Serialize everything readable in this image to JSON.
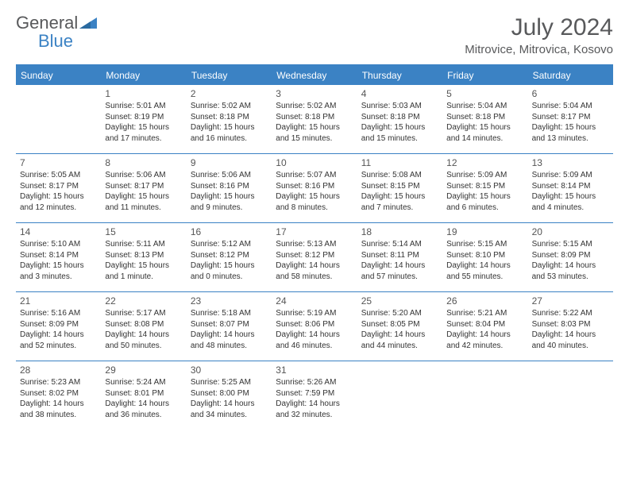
{
  "logo": {
    "part1": "General",
    "part2": "Blue"
  },
  "title": "July 2024",
  "location": "Mitrovice, Mitrovica, Kosovo",
  "colors": {
    "accent": "#3b82c4",
    "text": "#58595b"
  },
  "weekdays": [
    "Sunday",
    "Monday",
    "Tuesday",
    "Wednesday",
    "Thursday",
    "Friday",
    "Saturday"
  ],
  "weeks": [
    [
      null,
      {
        "n": "1",
        "sr": "Sunrise: 5:01 AM",
        "ss": "Sunset: 8:19 PM",
        "d1": "Daylight: 15 hours",
        "d2": "and 17 minutes."
      },
      {
        "n": "2",
        "sr": "Sunrise: 5:02 AM",
        "ss": "Sunset: 8:18 PM",
        "d1": "Daylight: 15 hours",
        "d2": "and 16 minutes."
      },
      {
        "n": "3",
        "sr": "Sunrise: 5:02 AM",
        "ss": "Sunset: 8:18 PM",
        "d1": "Daylight: 15 hours",
        "d2": "and 15 minutes."
      },
      {
        "n": "4",
        "sr": "Sunrise: 5:03 AM",
        "ss": "Sunset: 8:18 PM",
        "d1": "Daylight: 15 hours",
        "d2": "and 15 minutes."
      },
      {
        "n": "5",
        "sr": "Sunrise: 5:04 AM",
        "ss": "Sunset: 8:18 PM",
        "d1": "Daylight: 15 hours",
        "d2": "and 14 minutes."
      },
      {
        "n": "6",
        "sr": "Sunrise: 5:04 AM",
        "ss": "Sunset: 8:17 PM",
        "d1": "Daylight: 15 hours",
        "d2": "and 13 minutes."
      }
    ],
    [
      {
        "n": "7",
        "sr": "Sunrise: 5:05 AM",
        "ss": "Sunset: 8:17 PM",
        "d1": "Daylight: 15 hours",
        "d2": "and 12 minutes."
      },
      {
        "n": "8",
        "sr": "Sunrise: 5:06 AM",
        "ss": "Sunset: 8:17 PM",
        "d1": "Daylight: 15 hours",
        "d2": "and 11 minutes."
      },
      {
        "n": "9",
        "sr": "Sunrise: 5:06 AM",
        "ss": "Sunset: 8:16 PM",
        "d1": "Daylight: 15 hours",
        "d2": "and 9 minutes."
      },
      {
        "n": "10",
        "sr": "Sunrise: 5:07 AM",
        "ss": "Sunset: 8:16 PM",
        "d1": "Daylight: 15 hours",
        "d2": "and 8 minutes."
      },
      {
        "n": "11",
        "sr": "Sunrise: 5:08 AM",
        "ss": "Sunset: 8:15 PM",
        "d1": "Daylight: 15 hours",
        "d2": "and 7 minutes."
      },
      {
        "n": "12",
        "sr": "Sunrise: 5:09 AM",
        "ss": "Sunset: 8:15 PM",
        "d1": "Daylight: 15 hours",
        "d2": "and 6 minutes."
      },
      {
        "n": "13",
        "sr": "Sunrise: 5:09 AM",
        "ss": "Sunset: 8:14 PM",
        "d1": "Daylight: 15 hours",
        "d2": "and 4 minutes."
      }
    ],
    [
      {
        "n": "14",
        "sr": "Sunrise: 5:10 AM",
        "ss": "Sunset: 8:14 PM",
        "d1": "Daylight: 15 hours",
        "d2": "and 3 minutes."
      },
      {
        "n": "15",
        "sr": "Sunrise: 5:11 AM",
        "ss": "Sunset: 8:13 PM",
        "d1": "Daylight: 15 hours",
        "d2": "and 1 minute."
      },
      {
        "n": "16",
        "sr": "Sunrise: 5:12 AM",
        "ss": "Sunset: 8:12 PM",
        "d1": "Daylight: 15 hours",
        "d2": "and 0 minutes."
      },
      {
        "n": "17",
        "sr": "Sunrise: 5:13 AM",
        "ss": "Sunset: 8:12 PM",
        "d1": "Daylight: 14 hours",
        "d2": "and 58 minutes."
      },
      {
        "n": "18",
        "sr": "Sunrise: 5:14 AM",
        "ss": "Sunset: 8:11 PM",
        "d1": "Daylight: 14 hours",
        "d2": "and 57 minutes."
      },
      {
        "n": "19",
        "sr": "Sunrise: 5:15 AM",
        "ss": "Sunset: 8:10 PM",
        "d1": "Daylight: 14 hours",
        "d2": "and 55 minutes."
      },
      {
        "n": "20",
        "sr": "Sunrise: 5:15 AM",
        "ss": "Sunset: 8:09 PM",
        "d1": "Daylight: 14 hours",
        "d2": "and 53 minutes."
      }
    ],
    [
      {
        "n": "21",
        "sr": "Sunrise: 5:16 AM",
        "ss": "Sunset: 8:09 PM",
        "d1": "Daylight: 14 hours",
        "d2": "and 52 minutes."
      },
      {
        "n": "22",
        "sr": "Sunrise: 5:17 AM",
        "ss": "Sunset: 8:08 PM",
        "d1": "Daylight: 14 hours",
        "d2": "and 50 minutes."
      },
      {
        "n": "23",
        "sr": "Sunrise: 5:18 AM",
        "ss": "Sunset: 8:07 PM",
        "d1": "Daylight: 14 hours",
        "d2": "and 48 minutes."
      },
      {
        "n": "24",
        "sr": "Sunrise: 5:19 AM",
        "ss": "Sunset: 8:06 PM",
        "d1": "Daylight: 14 hours",
        "d2": "and 46 minutes."
      },
      {
        "n": "25",
        "sr": "Sunrise: 5:20 AM",
        "ss": "Sunset: 8:05 PM",
        "d1": "Daylight: 14 hours",
        "d2": "and 44 minutes."
      },
      {
        "n": "26",
        "sr": "Sunrise: 5:21 AM",
        "ss": "Sunset: 8:04 PM",
        "d1": "Daylight: 14 hours",
        "d2": "and 42 minutes."
      },
      {
        "n": "27",
        "sr": "Sunrise: 5:22 AM",
        "ss": "Sunset: 8:03 PM",
        "d1": "Daylight: 14 hours",
        "d2": "and 40 minutes."
      }
    ],
    [
      {
        "n": "28",
        "sr": "Sunrise: 5:23 AM",
        "ss": "Sunset: 8:02 PM",
        "d1": "Daylight: 14 hours",
        "d2": "and 38 minutes."
      },
      {
        "n": "29",
        "sr": "Sunrise: 5:24 AM",
        "ss": "Sunset: 8:01 PM",
        "d1": "Daylight: 14 hours",
        "d2": "and 36 minutes."
      },
      {
        "n": "30",
        "sr": "Sunrise: 5:25 AM",
        "ss": "Sunset: 8:00 PM",
        "d1": "Daylight: 14 hours",
        "d2": "and 34 minutes."
      },
      {
        "n": "31",
        "sr": "Sunrise: 5:26 AM",
        "ss": "Sunset: 7:59 PM",
        "d1": "Daylight: 14 hours",
        "d2": "and 32 minutes."
      },
      null,
      null,
      null
    ]
  ]
}
